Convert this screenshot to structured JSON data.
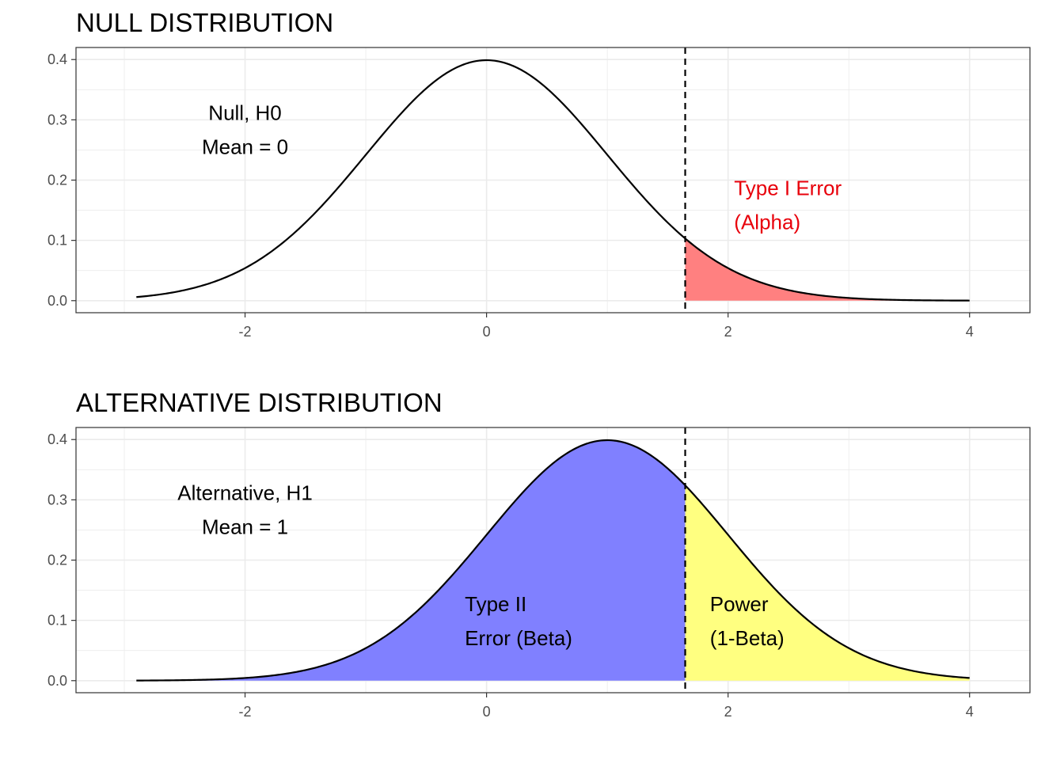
{
  "colors": {
    "alpha_fill": "#FF8080",
    "beta_fill": "#8080FF",
    "power_fill": "#FFFF80",
    "alpha_text": "#E8000B",
    "annotation_text": "#000000"
  },
  "chart_data": [
    {
      "type": "area",
      "title": "NULL DISTRIBUTION",
      "distribution": {
        "family": "normal",
        "mean": 0,
        "sd": 1
      },
      "x_range": [
        -2.9,
        4
      ],
      "xlim": [
        -3.4,
        4.5
      ],
      "ylim": [
        -0.02,
        0.42
      ],
      "x_ticks": [
        -2,
        0,
        2,
        4
      ],
      "y_ticks": [
        0.0,
        0.1,
        0.2,
        0.3,
        0.4
      ],
      "x_tick_labels": [
        "-2",
        "0",
        "2",
        "4"
      ],
      "y_tick_labels": [
        "0.0",
        "0.1",
        "0.2",
        "0.3",
        "0.4"
      ],
      "cutoff": 1.645,
      "grid": true,
      "shaded_regions": [
        {
          "name": "Type I Error (Alpha)",
          "from": 1.645,
          "to": 4,
          "color": "#FF8080"
        }
      ],
      "annotations": [
        {
          "lines": [
            "Null, H0",
            "Mean = 0"
          ],
          "x": -2.0,
          "y": 0.3,
          "color": "#000000",
          "anchor": "middle"
        },
        {
          "lines": [
            "Type I Error",
            "(Alpha)"
          ],
          "x": 2.05,
          "y": 0.175,
          "color": "#E8000B",
          "anchor": "start"
        }
      ]
    },
    {
      "type": "area",
      "title": "ALTERNATIVE DISTRIBUTION",
      "distribution": {
        "family": "normal",
        "mean": 1,
        "sd": 1
      },
      "x_range": [
        -2.9,
        4
      ],
      "xlim": [
        -3.4,
        4.5
      ],
      "ylim": [
        -0.02,
        0.42
      ],
      "x_ticks": [
        -2,
        0,
        2,
        4
      ],
      "y_ticks": [
        0.0,
        0.1,
        0.2,
        0.3,
        0.4
      ],
      "x_tick_labels": [
        "-2",
        "0",
        "2",
        "4"
      ],
      "y_tick_labels": [
        "0.0",
        "0.1",
        "0.2",
        "0.3",
        "0.4"
      ],
      "cutoff": 1.645,
      "grid": true,
      "shaded_regions": [
        {
          "name": "Type II Error (Beta)",
          "from": -2.9,
          "to": 1.645,
          "color": "#8080FF"
        },
        {
          "name": "Power (1-Beta)",
          "from": 1.645,
          "to": 4,
          "color": "#FFFF80"
        }
      ],
      "annotations": [
        {
          "lines": [
            "Alternative, H1",
            "Mean = 1"
          ],
          "x": -2.0,
          "y": 0.3,
          "color": "#000000",
          "anchor": "middle"
        },
        {
          "lines": [
            "Type II",
            " Error (Beta)"
          ],
          "x": -0.18,
          "y": 0.115,
          "color": "#000000",
          "anchor": "start"
        },
        {
          "lines": [
            "Power",
            " (1-Beta)"
          ],
          "x": 1.85,
          "y": 0.115,
          "color": "#000000",
          "anchor": "start"
        }
      ]
    }
  ]
}
